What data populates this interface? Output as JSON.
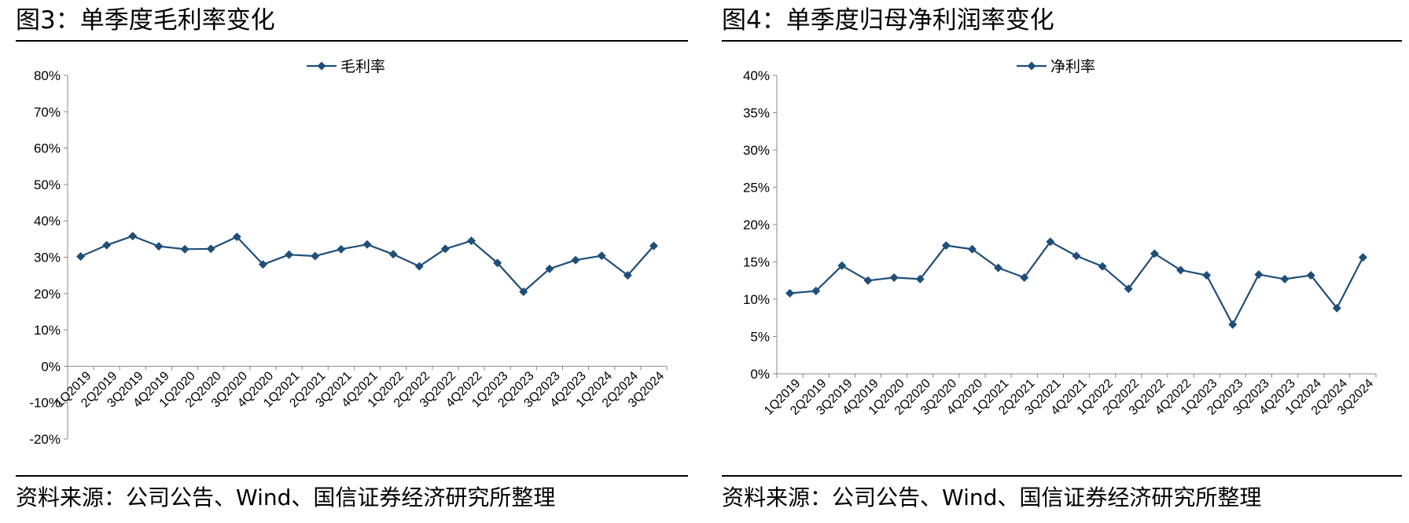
{
  "panels": [
    {
      "title": "图3：单季度毛利率变化",
      "source": "资料来源：公司公告、Wind、国信证券经济研究所整理"
    },
    {
      "title": "图4：单季度归母净利润率变化",
      "source": "资料来源：公司公告、Wind、国信证券经济研究所整理"
    }
  ],
  "chart_data": [
    {
      "type": "line",
      "title": "",
      "xlabel": "",
      "ylabel": "",
      "ylim": [
        -20,
        80
      ],
      "yticks": [
        "80%",
        "70%",
        "60%",
        "50%",
        "40%",
        "30%",
        "20%",
        "10%",
        "0%",
        "-10%",
        "-20%"
      ],
      "ytick_values": [
        80,
        70,
        60,
        50,
        40,
        30,
        20,
        10,
        0,
        -10,
        -20
      ],
      "categories": [
        "1Q2019",
        "2Q2019",
        "3Q2019",
        "4Q2019",
        "1Q2020",
        "2Q2020",
        "3Q2020",
        "4Q2020",
        "1Q2021",
        "2Q2021",
        "3Q2021",
        "4Q2021",
        "1Q2022",
        "2Q2022",
        "3Q2022",
        "4Q2022",
        "1Q2023",
        "2Q2023",
        "3Q2023",
        "4Q2023",
        "1Q2024",
        "2Q2024",
        "3Q2024"
      ],
      "series": [
        {
          "name": "毛利率",
          "color": "#1f4e79",
          "marker": "diamond",
          "values": [
            30.2,
            33.3,
            35.8,
            33.0,
            32.2,
            32.3,
            35.6,
            28.0,
            30.7,
            30.3,
            32.2,
            33.5,
            30.8,
            27.5,
            32.3,
            34.5,
            28.4,
            20.5,
            26.8,
            29.2,
            30.4,
            25.0,
            33.1
          ]
        }
      ],
      "grid": false,
      "legend_position": "top-center"
    },
    {
      "type": "line",
      "title": "",
      "xlabel": "",
      "ylabel": "",
      "ylim": [
        0,
        40
      ],
      "yticks": [
        "40%",
        "35%",
        "30%",
        "25%",
        "20%",
        "15%",
        "10%",
        "5%",
        "0%"
      ],
      "ytick_values": [
        40,
        35,
        30,
        25,
        20,
        15,
        10,
        5,
        0
      ],
      "categories": [
        "1Q2019",
        "2Q2019",
        "3Q2019",
        "4Q2019",
        "1Q2020",
        "2Q2020",
        "3Q2020",
        "4Q2020",
        "1Q2021",
        "2Q2021",
        "3Q2021",
        "4Q2021",
        "1Q2022",
        "2Q2022",
        "3Q2022",
        "4Q2022",
        "1Q2023",
        "2Q2023",
        "3Q2023",
        "4Q2023",
        "1Q2024",
        "2Q2024",
        "3Q2024"
      ],
      "series": [
        {
          "name": "净利率",
          "color": "#1f4e79",
          "marker": "diamond",
          "values": [
            10.8,
            11.1,
            14.5,
            12.5,
            12.9,
            12.7,
            17.2,
            16.7,
            14.2,
            12.9,
            17.7,
            15.8,
            14.4,
            11.4,
            16.1,
            13.9,
            13.2,
            6.6,
            13.3,
            12.7,
            13.2,
            8.8,
            15.6
          ]
        }
      ],
      "grid": false,
      "legend_position": "top-center"
    }
  ]
}
